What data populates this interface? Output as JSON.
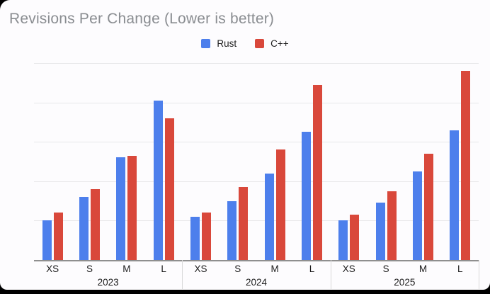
{
  "title": "Revisions Per Change (Lower is better)",
  "legend": [
    {
      "name": "Rust",
      "color": "#4d7fec"
    },
    {
      "name": "C++",
      "color": "#d9483b"
    }
  ],
  "colors": {
    "rust": "#4d7fec",
    "cpp": "#d9483b",
    "background": "#fdfcfe",
    "title_text": "#8a8d91",
    "gridline": "#e7e7e9",
    "axis_line": "#8f8f8f",
    "label_text": "#1c1c1c"
  },
  "chart_data": {
    "type": "bar",
    "title": "Revisions Per Change (Lower is better)",
    "xlabel": "",
    "ylabel": "",
    "ylim": [
      0,
      5
    ],
    "gridline_step": 1,
    "grid": true,
    "y_axis_tick_labels_visible": false,
    "legend_position": "top",
    "categories": [
      "XS",
      "S",
      "M",
      "L"
    ],
    "group_labels": [
      "2023",
      "2024",
      "2025"
    ],
    "series_names": [
      "Rust",
      "C++"
    ],
    "groups": [
      {
        "label": "2023",
        "rust": [
          1.0,
          1.6,
          2.6,
          4.05
        ],
        "cpp": [
          1.2,
          1.8,
          2.65,
          3.6
        ]
      },
      {
        "label": "2024",
        "rust": [
          1.1,
          1.5,
          2.2,
          3.25
        ],
        "cpp": [
          1.2,
          1.85,
          2.8,
          4.45
        ]
      },
      {
        "label": "2025",
        "rust": [
          1.0,
          1.45,
          2.25,
          3.3
        ],
        "cpp": [
          1.15,
          1.75,
          2.7,
          4.8
        ]
      }
    ]
  }
}
